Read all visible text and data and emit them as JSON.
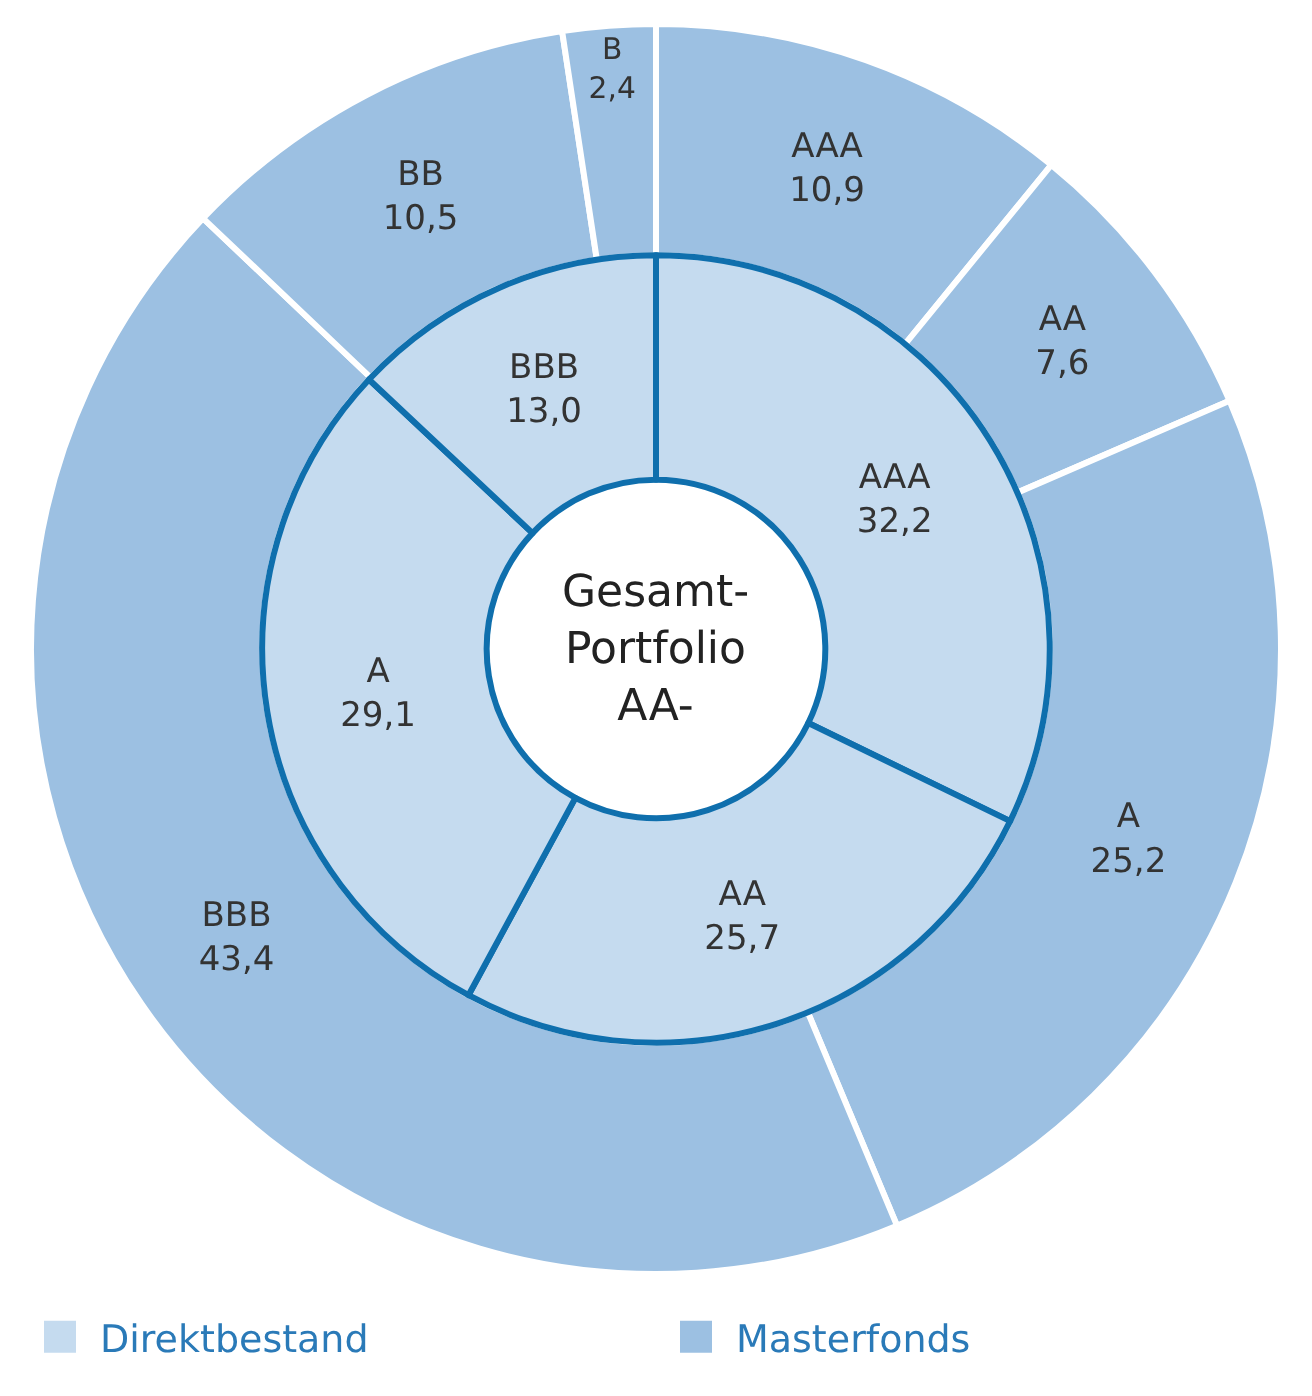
{
  "chart_data": {
    "type": "donut",
    "categories": [
      "AAA",
      "AA",
      "A",
      "BBB",
      "BB",
      "B"
    ],
    "series": [
      {
        "name": "Masterfonds",
        "color": "#9cc0e2",
        "values": [
          10.9,
          7.6,
          25.2,
          43.4,
          10.5,
          2.4
        ],
        "value_labels": [
          "10,9",
          "7,6",
          "25,2",
          "43,4",
          "10,5",
          "2,4"
        ]
      },
      {
        "name": "Direktbestand",
        "color": "#c5dbef",
        "values": [
          32.2,
          25.7,
          29.1,
          13.0,
          null,
          null
        ],
        "value_labels": [
          "32,2",
          "25,7",
          "29,1",
          "13,0",
          null,
          null
        ]
      }
    ],
    "annotations": [
      "Gesamt-\nPortfolio\nAA-"
    ],
    "legend": "bottom"
  }
}
